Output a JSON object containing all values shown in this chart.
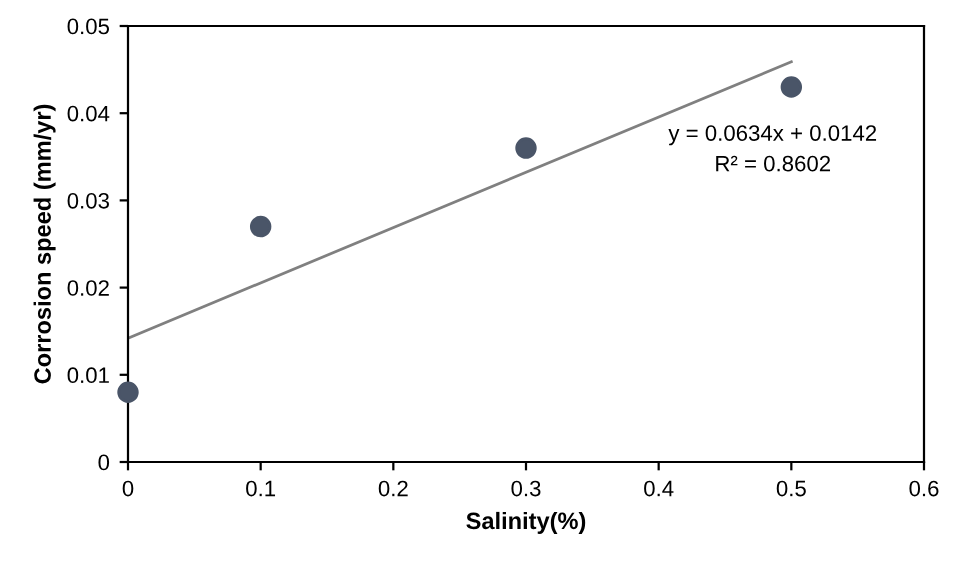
{
  "chart_data": {
    "type": "scatter",
    "xlabel": "Salinity(%)",
    "ylabel": "Corrosion speed (mm/yr)",
    "series": [
      {
        "color": "#4a5568",
        "x": [
          0,
          0.1,
          0.3,
          0.5
        ],
        "values": [
          0.008,
          0.027,
          0.036,
          0.043
        ],
        "marker": "circle"
      },
      {
        "type": "line",
        "color": "#808080",
        "x": [
          0,
          0.5
        ],
        "values": [
          0.0142,
          0.0459
        ]
      }
    ],
    "annotations": [
      "y = 0.0634x + 0.0142",
      "R² = 0.8602"
    ],
    "xlim": [
      0,
      0.6
    ],
    "xticks": [
      0,
      0.1,
      0.2,
      0.3,
      0.4,
      0.5,
      0.6
    ],
    "ylim": [
      0,
      0.05
    ],
    "yticks": [
      0,
      0.01,
      0.02,
      0.03,
      0.04,
      0.05
    ],
    "grid": false,
    "legend": false
  }
}
